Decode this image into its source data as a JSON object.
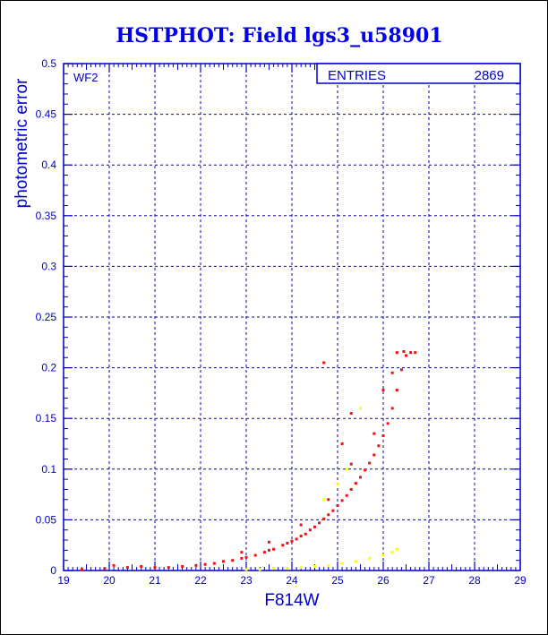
{
  "chart_data": {
    "type": "scatter",
    "title": "HSTPHOT: Field lgs3_u58901",
    "xlabel": "F814W",
    "ylabel": "photometric error",
    "xlim": [
      19,
      29
    ],
    "ylim": [
      0,
      0.5
    ],
    "x_ticks": [
      "19",
      "20",
      "21",
      "22",
      "23",
      "24",
      "25",
      "26",
      "27",
      "28",
      "29"
    ],
    "y_ticks": [
      "0",
      "0.05",
      "0.1",
      "0.15",
      "0.2",
      "0.25",
      "0.3",
      "0.35",
      "0.4",
      "0.45",
      "0.5"
    ],
    "grid": true,
    "panel_label": "WF2",
    "stats_box": {
      "label": "ENTRIES",
      "value": "2869"
    },
    "colors": {
      "axis": "#0000cc",
      "title": "#0000ee",
      "grid": "#0000cc",
      "main_points": "#ee1111",
      "secondary_points": "#ffff00"
    },
    "series": [
      {
        "color": "#ee1111",
        "points": [
          [
            19.4,
            0.001
          ],
          [
            19.9,
            0.002
          ],
          [
            20.1,
            0.005
          ],
          [
            20.4,
            0.003
          ],
          [
            20.7,
            0.004
          ],
          [
            21.0,
            0.003
          ],
          [
            21.3,
            0.003
          ],
          [
            21.6,
            0.004
          ],
          [
            21.9,
            0.005
          ],
          [
            22.1,
            0.006
          ],
          [
            22.3,
            0.007
          ],
          [
            22.5,
            0.009
          ],
          [
            22.7,
            0.01
          ],
          [
            22.9,
            0.012
          ],
          [
            23.0,
            0.013
          ],
          [
            23.2,
            0.015
          ],
          [
            23.4,
            0.018
          ],
          [
            23.5,
            0.02
          ],
          [
            23.6,
            0.021
          ],
          [
            23.8,
            0.025
          ],
          [
            23.9,
            0.027
          ],
          [
            24.0,
            0.029
          ],
          [
            24.1,
            0.031
          ],
          [
            24.2,
            0.034
          ],
          [
            24.3,
            0.036
          ],
          [
            24.4,
            0.04
          ],
          [
            24.5,
            0.043
          ],
          [
            24.6,
            0.047
          ],
          [
            24.7,
            0.051
          ],
          [
            24.8,
            0.055
          ],
          [
            24.9,
            0.059
          ],
          [
            25.0,
            0.064
          ],
          [
            25.1,
            0.069
          ],
          [
            25.2,
            0.074
          ],
          [
            25.3,
            0.08
          ],
          [
            25.4,
            0.086
          ],
          [
            25.5,
            0.092
          ],
          [
            25.6,
            0.099
          ],
          [
            25.7,
            0.106
          ],
          [
            25.8,
            0.114
          ],
          [
            25.9,
            0.123
          ],
          [
            26.0,
            0.133
          ],
          [
            26.1,
            0.145
          ],
          [
            26.2,
            0.16
          ],
          [
            26.3,
            0.178
          ],
          [
            26.4,
            0.198
          ],
          [
            26.5,
            0.212
          ],
          [
            26.6,
            0.215
          ],
          [
            26.7,
            0.215
          ],
          [
            22.9,
            0.018
          ],
          [
            23.5,
            0.028
          ],
          [
            24.2,
            0.045
          ],
          [
            24.8,
            0.07
          ],
          [
            25.3,
            0.105
          ],
          [
            25.8,
            0.135
          ],
          [
            25.3,
            0.155
          ],
          [
            25.1,
            0.125
          ],
          [
            24.7,
            0.205
          ],
          [
            26.0,
            0.178
          ],
          [
            26.2,
            0.195
          ],
          [
            26.3,
            0.215
          ],
          [
            26.45,
            0.216
          ]
        ]
      },
      {
        "color": "#ffff00",
        "points": [
          [
            23.0,
            0.001
          ],
          [
            23.3,
            0.001
          ],
          [
            23.6,
            0.002
          ],
          [
            23.9,
            0.002
          ],
          [
            24.2,
            0.003
          ],
          [
            24.5,
            0.004
          ],
          [
            24.8,
            0.005
          ],
          [
            25.1,
            0.007
          ],
          [
            25.4,
            0.009
          ],
          [
            25.7,
            0.012
          ],
          [
            26.0,
            0.015
          ],
          [
            26.2,
            0.018
          ],
          [
            26.3,
            0.021
          ],
          [
            24.7,
            0.07
          ],
          [
            25.0,
            0.085
          ],
          [
            25.2,
            0.1
          ],
          [
            25.5,
            0.16
          ]
        ]
      }
    ]
  }
}
